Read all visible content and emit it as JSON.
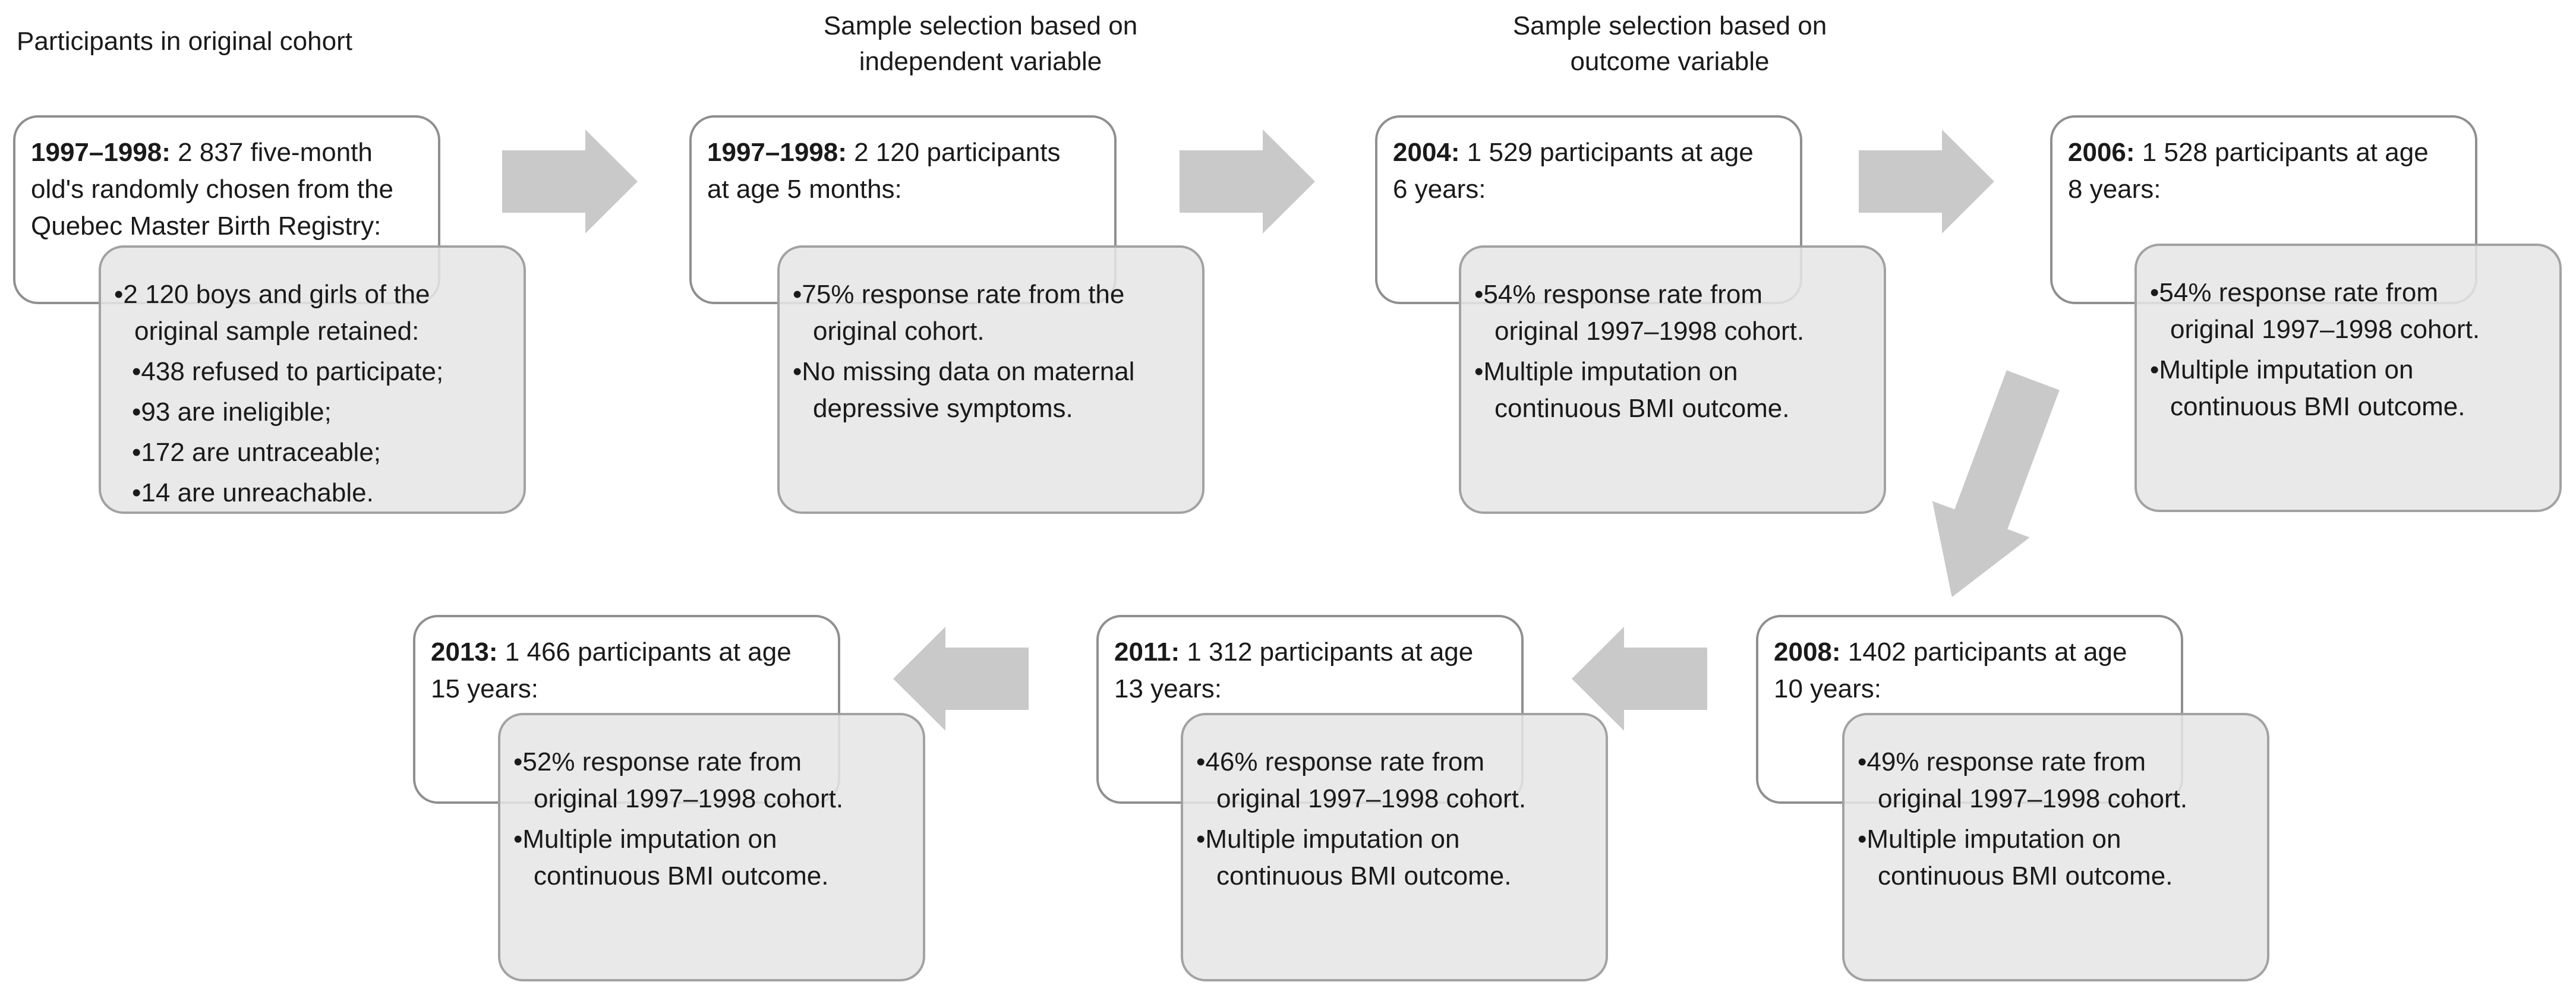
{
  "diagram": {
    "column_headers": [
      {
        "text": "Participants in original cohort"
      },
      {
        "text": "Sample selection based on\nindependent variable"
      },
      {
        "text": "Sample selection based on\noutcome variable"
      }
    ],
    "stages": [
      {
        "year": "1997–1998:",
        "description": " 2 837 five-month\nold's randomly chosen from the\nQuebec Master Birth Registry:",
        "bullets": [
          {
            "text": "•2 120 boys and girls of the\noriginal sample retained:",
            "sub": false
          },
          {
            "text": "•438 refused to participate;",
            "sub": true
          },
          {
            "text": "•93 are ineligible;",
            "sub": true
          },
          {
            "text": "•172 are untraceable;",
            "sub": true
          },
          {
            "text": "•14 are unreachable.",
            "sub": true
          }
        ]
      },
      {
        "year": "1997–1998:",
        "description": " 2 120 participants\nat age 5 months:",
        "bullets": [
          {
            "text": "•75% response rate from the\noriginal cohort.",
            "sub": false
          },
          {
            "text": "•No missing data on maternal\ndepressive symptoms.",
            "sub": false
          }
        ]
      },
      {
        "year": "2004:",
        "description": " 1 529 participants at age\n6 years:",
        "bullets": [
          {
            "text": "•54% response rate from\noriginal 1997–1998 cohort.",
            "sub": false
          },
          {
            "text": "•Multiple imputation on\ncontinuous BMI outcome.",
            "sub": false
          }
        ]
      },
      {
        "year": "2006:",
        "description": " 1 528 participants at age\n8 years:",
        "bullets": [
          {
            "text": "•54% response rate from\noriginal 1997–1998 cohort.",
            "sub": false
          },
          {
            "text": "•Multiple imputation on\ncontinuous BMI outcome.",
            "sub": false
          }
        ]
      },
      {
        "year": "2008:",
        "description": " 1402 participants at age\n10 years:",
        "bullets": [
          {
            "text": "•49% response rate from\noriginal 1997–1998 cohort.",
            "sub": false
          },
          {
            "text": "•Multiple imputation on\ncontinuous BMI outcome.",
            "sub": false
          }
        ]
      },
      {
        "year": "2011:",
        "description": " 1 312 participants at age\n13 years:",
        "bullets": [
          {
            "text": "•46% response rate from\noriginal 1997–1998 cohort.",
            "sub": false
          },
          {
            "text": "•Multiple imputation on\ncontinuous BMI outcome.",
            "sub": false
          }
        ]
      },
      {
        "year": "2013:",
        "description": " 1 466 participants at age\n15 years:",
        "bullets": [
          {
            "text": "•52% response rate from\noriginal 1997–1998 cohort.",
            "sub": false
          },
          {
            "text": "•Multiple imputation on\ncontinuous BMI outcome.",
            "sub": false
          }
        ]
      }
    ],
    "colors": {
      "background": "#ffffff",
      "text": "#1a1a1a",
      "white_box_border": "#8f8f8f",
      "gray_box_border": "#a2a2a2",
      "gray_box_fill": "rgba(230,230,230,0.87)",
      "arrow_fill": "#c9c9c9"
    }
  }
}
